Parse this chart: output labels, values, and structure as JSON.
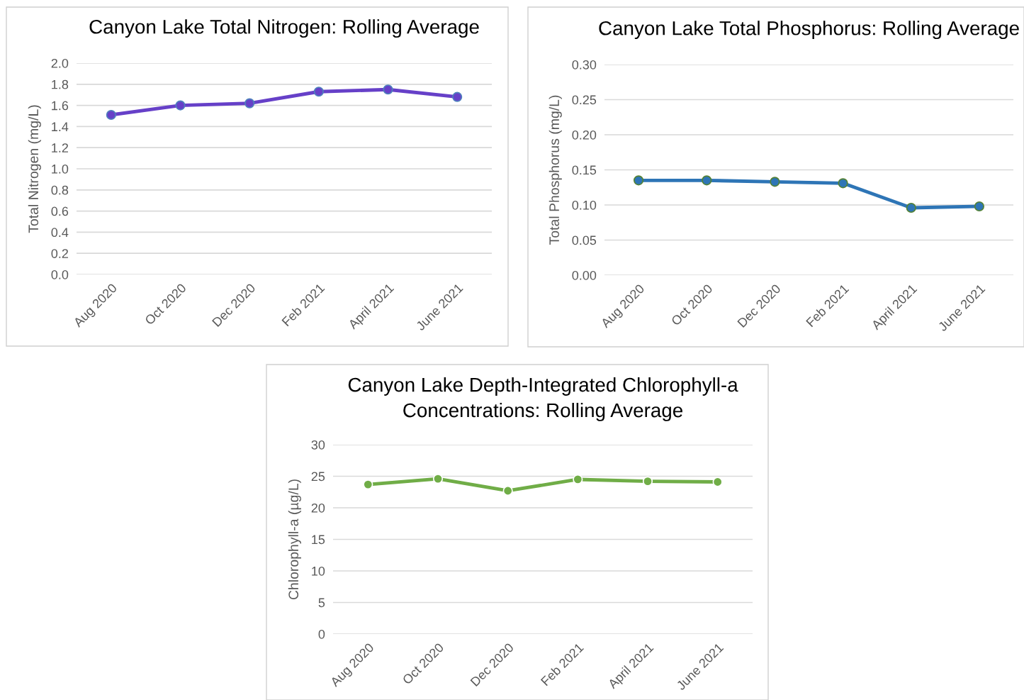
{
  "chart_data": [
    {
      "type": "line",
      "title": "Canyon Lake Total Nitrogen: Rolling Average",
      "ylabel": "Total Nitrogen (mg/L)",
      "categories": [
        "Aug 2020",
        "Oct 2020",
        "Dec 2020",
        "Feb 2021",
        "April 2021",
        "June 2021"
      ],
      "series": [
        {
          "color": "#6640c8",
          "values": [
            1.51,
            1.6,
            1.62,
            1.73,
            1.75,
            1.68
          ]
        }
      ],
      "ylim": [
        0.0,
        2.0
      ],
      "yticks": [
        {
          "value": 0,
          "label": "0.0"
        },
        0.2,
        0.4,
        0.6,
        0.8,
        {
          "value": 1,
          "label": "1.0"
        },
        1.2,
        1.4,
        1.6,
        1.8,
        {
          "value": 2,
          "label": "2.0"
        }
      ],
      "grid": "y",
      "marker": "circle"
    },
    {
      "type": "line",
      "title": "Canyon Lake Total Phosphorus: Rolling Average",
      "ylabel": "Total Phosphorus (mg/L)",
      "categories": [
        "Aug 2020",
        "Oct 2020",
        "Dec 2020",
        "Feb 2021",
        "April 2021",
        "June 2021"
      ],
      "series": [
        {
          "color": "#2e75b6",
          "values": [
            0.135,
            0.135,
            0.133,
            0.131,
            0.096,
            0.098
          ]
        }
      ],
      "ylim": [
        0.0,
        0.3
      ],
      "yticks": [
        {
          "value": 0.0,
          "label": "0.00"
        },
        {
          "value": 0.05,
          "label": "0.05"
        },
        {
          "value": 0.1,
          "label": "0.10"
        },
        {
          "value": 0.15,
          "label": "0.15"
        },
        {
          "value": 0.2,
          "label": "0.20"
        },
        {
          "value": 0.25,
          "label": "0.25"
        },
        {
          "value": 0.3,
          "label": "0.30"
        }
      ],
      "grid": "y",
      "marker": "circle"
    },
    {
      "type": "line",
      "title": "Canyon Lake Depth-Integrated Chlorophyll-a\nConcentrations: Rolling Average",
      "ylabel": "Chlorophyll-a (µg/L)",
      "categories": [
        "Aug 2020",
        "Oct 2020",
        "Dec 2020",
        "Feb 2021",
        "April 2021",
        "June 2021"
      ],
      "series": [
        {
          "color": "#70ad47",
          "values": [
            23.7,
            24.6,
            22.7,
            24.5,
            24.2,
            24.1
          ]
        }
      ],
      "ylim": [
        0,
        30
      ],
      "yticks": [
        0,
        5,
        10,
        15,
        20,
        25,
        30
      ],
      "grid": "y",
      "marker": "circle"
    }
  ]
}
